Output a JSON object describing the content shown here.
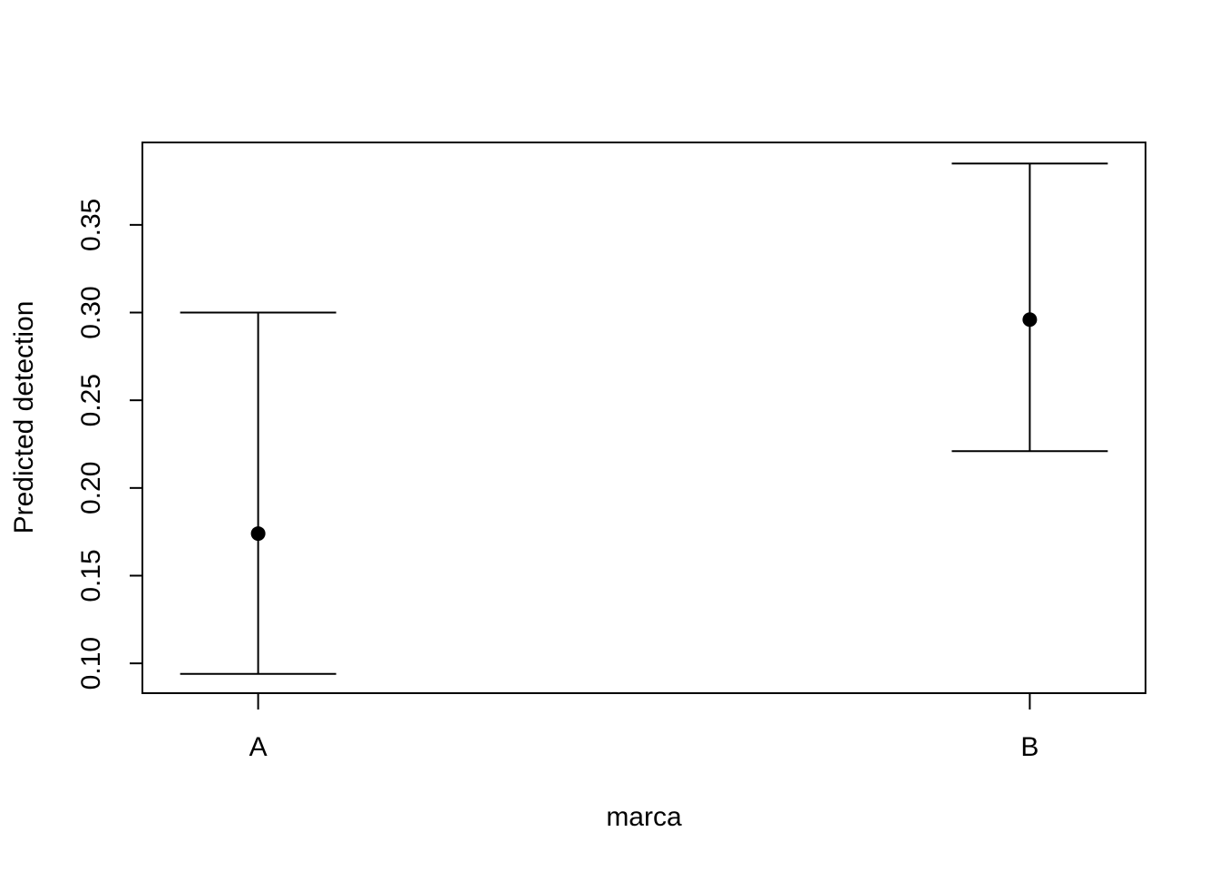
{
  "chart_data": {
    "type": "scatter",
    "subtype": "point-with-error-bars",
    "title": "",
    "xlabel": "marca",
    "ylabel": "Predicted detection",
    "categories": [
      "A",
      "B"
    ],
    "points": [
      {
        "category": "A",
        "estimate": 0.174,
        "lower": 0.094,
        "upper": 0.3
      },
      {
        "category": "B",
        "estimate": 0.296,
        "lower": 0.221,
        "upper": 0.385
      }
    ],
    "ylim": [
      0.083,
      0.397
    ],
    "yticks": [
      0.1,
      0.15,
      0.2,
      0.25,
      0.3,
      0.35
    ],
    "ytick_labels": [
      "0.10",
      "0.15",
      "0.20",
      "0.25",
      "0.30",
      "0.35"
    ],
    "grid": false,
    "legend": "none",
    "colors": {
      "marks": "#000000",
      "background": "#ffffff"
    }
  }
}
